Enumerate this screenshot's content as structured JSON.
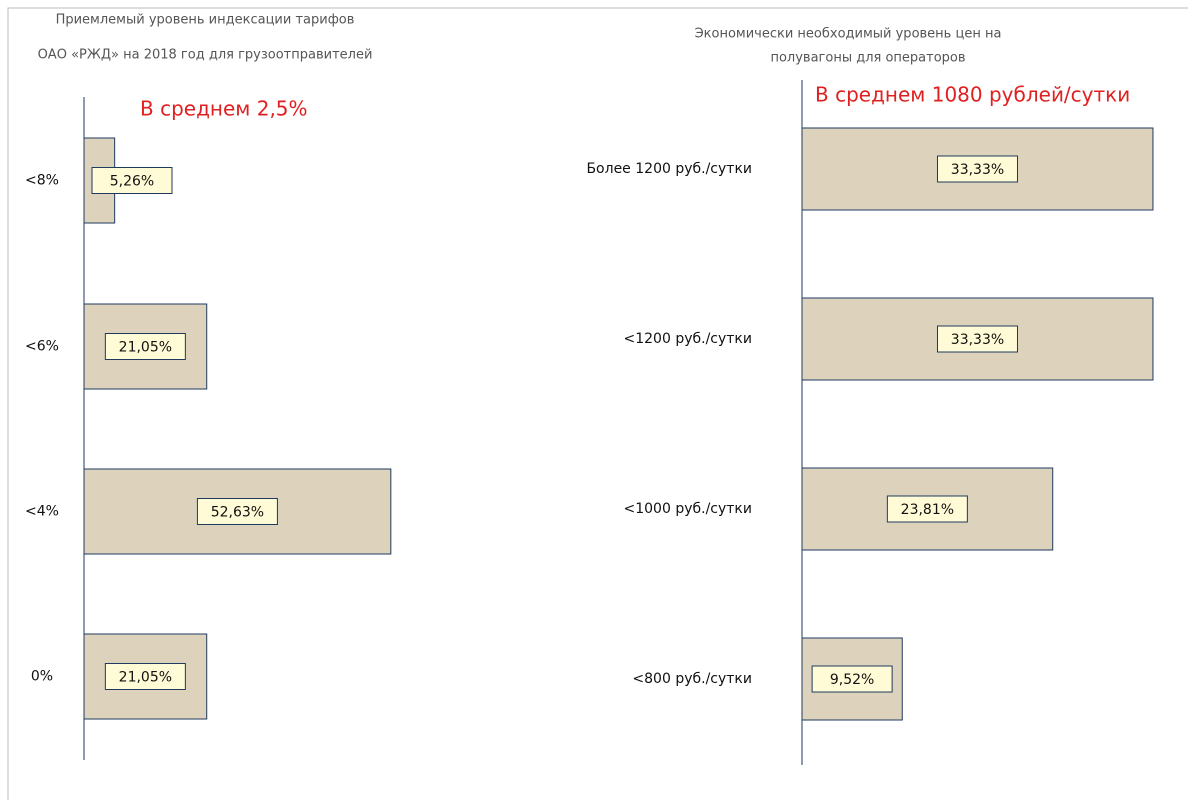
{
  "chart_data": [
    {
      "type": "barh",
      "title_lines": [
        "Приемлемый уровень индексации тарифов",
        "ОАО «РЖД» на 2018        год для грузоотправителей"
      ],
      "annotation": "В среднем 2,5%",
      "categories": [
        "<8%",
        "<6%",
        "<4%",
        "0%"
      ],
      "values": [
        5.26,
        21.05,
        52.63,
        21.05
      ],
      "value_labels": [
        "5,26%",
        "21,05%",
        "52,63%",
        "21,05%"
      ],
      "color": "#ddd3bc"
    },
    {
      "type": "barh",
      "title_lines": [
        "Экономически необходимый уровень цен на",
        "полувагоны для операторов"
      ],
      "annotation": "В среднем 1080 рублей/сутки",
      "categories": [
        "Более 1200 руб./сутки",
        "<1200 руб./сутки",
        "<1000 руб./сутки",
        "<800 руб./сутки"
      ],
      "values": [
        33.33,
        33.33,
        23.81,
        9.52
      ],
      "value_labels": [
        "33,33%",
        "33,33%",
        "23,81%",
        "9,52%"
      ],
      "color": "#ddd3bc"
    }
  ]
}
